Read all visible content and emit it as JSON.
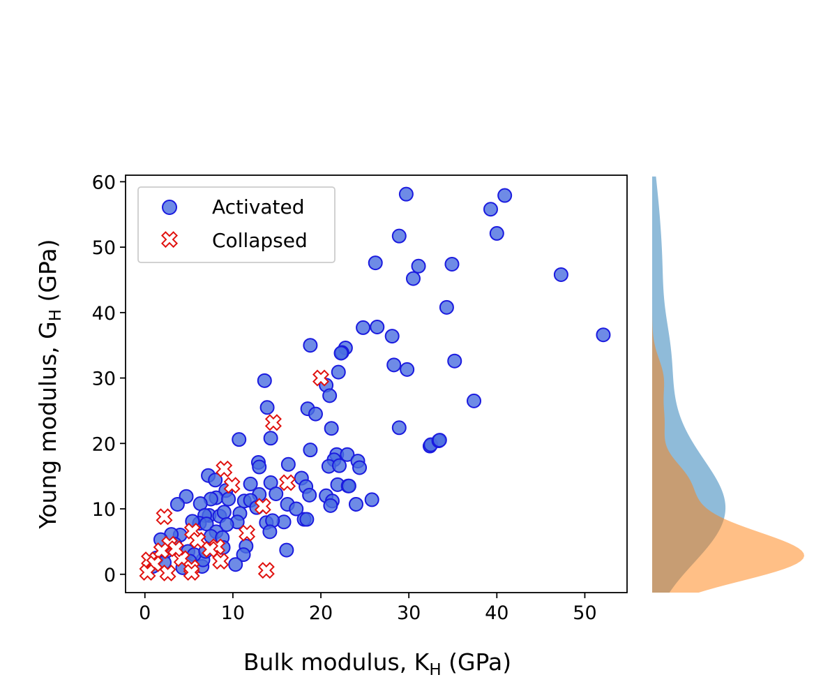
{
  "chart_data": {
    "type": "scatter",
    "xlabel": "Bulk modulus, K",
    "xlabel_sub": "H",
    "xlabel_unit": " (GPa)",
    "ylabel": "Young modulus, G",
    "ylabel_sub": "H",
    "ylabel_unit": " (GPa)",
    "xlim": [
      -2.2,
      54.8
    ],
    "ylim": [
      -2.8,
      61
    ],
    "xticks": [
      0,
      10,
      20,
      30,
      40,
      50
    ],
    "yticks": [
      0,
      10,
      20,
      30,
      40,
      50,
      60
    ],
    "legend_position": "top-left",
    "grid": false,
    "series": [
      {
        "name": "Activated",
        "marker": "circle",
        "fill_color": "#4a6ee0",
        "edge_color": "#1a1adf",
        "points": [
          [
            29.7,
            58.1
          ],
          [
            40.9,
            57.9
          ],
          [
            39.3,
            55.8
          ],
          [
            40.0,
            52.1
          ],
          [
            28.9,
            51.7
          ],
          [
            26.2,
            47.6
          ],
          [
            31.1,
            47.1
          ],
          [
            34.9,
            47.4
          ],
          [
            30.5,
            45.2
          ],
          [
            47.3,
            45.8
          ],
          [
            34.3,
            40.8
          ],
          [
            52.1,
            36.6
          ],
          [
            24.8,
            37.7
          ],
          [
            26.4,
            37.8
          ],
          [
            28.1,
            36.4
          ],
          [
            18.8,
            35.0
          ],
          [
            22.8,
            34.6
          ],
          [
            22.4,
            33.9
          ],
          [
            22.3,
            33.8
          ],
          [
            35.2,
            32.6
          ],
          [
            28.3,
            32.0
          ],
          [
            29.8,
            31.3
          ],
          [
            22.0,
            30.9
          ],
          [
            13.6,
            29.6
          ],
          [
            20.6,
            28.9
          ],
          [
            21.0,
            27.3
          ],
          [
            37.4,
            26.5
          ],
          [
            13.9,
            25.5
          ],
          [
            18.5,
            25.3
          ],
          [
            19.4,
            24.5
          ],
          [
            28.9,
            22.4
          ],
          [
            21.2,
            22.3
          ],
          [
            14.3,
            20.8
          ],
          [
            10.7,
            20.6
          ],
          [
            32.4,
            19.6
          ],
          [
            32.5,
            19.8
          ],
          [
            33.4,
            20.4
          ],
          [
            33.5,
            20.5
          ],
          [
            18.8,
            19.0
          ],
          [
            21.8,
            18.3
          ],
          [
            23.0,
            18.3
          ],
          [
            21.5,
            17.5
          ],
          [
            24.2,
            17.3
          ],
          [
            12.9,
            17.1
          ],
          [
            16.3,
            16.8
          ],
          [
            20.9,
            16.5
          ],
          [
            22.1,
            16.6
          ],
          [
            24.4,
            16.3
          ],
          [
            13.0,
            16.4
          ],
          [
            7.2,
            15.1
          ],
          [
            17.8,
            14.7
          ],
          [
            8.0,
            14.4
          ],
          [
            12.0,
            13.8
          ],
          [
            14.3,
            14.0
          ],
          [
            18.3,
            13.4
          ],
          [
            21.9,
            13.7
          ],
          [
            23.1,
            13.5
          ],
          [
            23.2,
            13.5
          ],
          [
            9.2,
            12.8
          ],
          [
            13.0,
            12.2
          ],
          [
            14.9,
            12.3
          ],
          [
            18.7,
            12.1
          ],
          [
            20.6,
            12.0
          ],
          [
            4.7,
            11.9
          ],
          [
            8.1,
            11.7
          ],
          [
            7.5,
            11.5
          ],
          [
            9.5,
            11.5
          ],
          [
            11.3,
            11.2
          ],
          [
            12.0,
            11.3
          ],
          [
            21.3,
            11.2
          ],
          [
            25.8,
            11.4
          ],
          [
            6.3,
            10.8
          ],
          [
            3.7,
            10.7
          ],
          [
            16.2,
            10.7
          ],
          [
            21.1,
            10.5
          ],
          [
            24.0,
            10.7
          ],
          [
            12.7,
            10.2
          ],
          [
            17.2,
            10.0
          ],
          [
            7.3,
            9.0
          ],
          [
            8.5,
            8.9
          ],
          [
            9.0,
            9.5
          ],
          [
            10.8,
            9.3
          ],
          [
            6.8,
            9.0
          ],
          [
            10.5,
            8.0
          ],
          [
            13.8,
            7.9
          ],
          [
            15.8,
            8.0
          ],
          [
            18.1,
            8.4
          ],
          [
            18.4,
            8.4
          ],
          [
            14.5,
            8.2
          ],
          [
            6.2,
            7.8
          ],
          [
            7.0,
            7.7
          ],
          [
            9.3,
            7.6
          ],
          [
            5.4,
            8.1
          ],
          [
            14.2,
            6.5
          ],
          [
            8.1,
            6.5
          ],
          [
            4.0,
            6.0
          ],
          [
            3.0,
            6.1
          ],
          [
            7.5,
            5.8
          ],
          [
            8.8,
            5.6
          ],
          [
            1.8,
            5.3
          ],
          [
            11.5,
            4.3
          ],
          [
            8.9,
            4.1
          ],
          [
            11.2,
            3.0
          ],
          [
            10.3,
            1.5
          ],
          [
            6.5,
            1.2
          ],
          [
            16.1,
            3.7
          ],
          [
            4.9,
            3.5
          ],
          [
            6.6,
            2.2
          ],
          [
            5.6,
            3.0
          ],
          [
            3.4,
            4.6
          ],
          [
            2.4,
            3.5
          ],
          [
            1.3,
            2.5
          ],
          [
            0.9,
            1.2
          ],
          [
            2.2,
            1.8
          ],
          [
            5.1,
            2.0
          ],
          [
            4.3,
            1.0
          ],
          [
            6.9,
            3.5
          ]
        ]
      },
      {
        "name": "Collapsed",
        "marker": "x-filled",
        "fill_color": "#ffffff",
        "edge_color": "#e0120f",
        "points": [
          [
            20.0,
            30.0
          ],
          [
            14.6,
            23.2
          ],
          [
            9.0,
            16.1
          ],
          [
            16.2,
            14.0
          ],
          [
            9.9,
            13.6
          ],
          [
            13.4,
            10.4
          ],
          [
            2.2,
            8.8
          ],
          [
            11.6,
            6.3
          ],
          [
            5.4,
            6.6
          ],
          [
            6.0,
            5.2
          ],
          [
            2.8,
            4.6
          ],
          [
            8.2,
            4.2
          ],
          [
            7.4,
            3.8
          ],
          [
            1.9,
            3.6
          ],
          [
            4.2,
            2.4
          ],
          [
            0.5,
            2.2
          ],
          [
            8.6,
            2.0
          ],
          [
            1.1,
            1.6
          ],
          [
            5.3,
            1.0
          ],
          [
            13.8,
            0.6
          ],
          [
            0.3,
            0.3
          ],
          [
            2.6,
            0.2
          ],
          [
            5.3,
            0.3
          ],
          [
            3.5,
            3.9
          ]
        ]
      }
    ],
    "marginal_density": {
      "orientation": "horizontal, right of scatter, density along y-axis",
      "series": [
        {
          "name": "Activated",
          "color": "#1f77b4",
          "opacity": 0.5
        },
        {
          "name": "Collapsed",
          "color": "#ff7f0e",
          "opacity": 0.5
        }
      ]
    }
  }
}
